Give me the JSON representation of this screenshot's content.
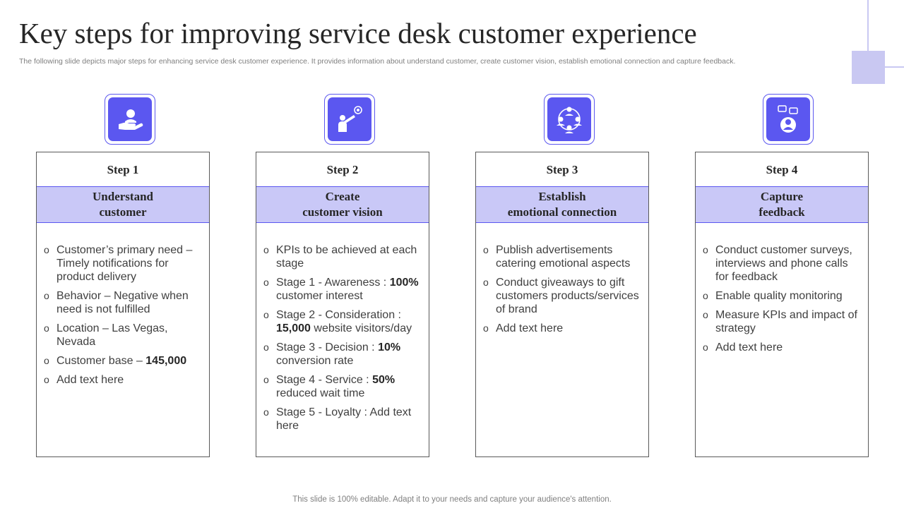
{
  "title": "Key steps for improving service desk customer experience",
  "subtitle": "The following slide depicts major steps for enhancing service desk customer experience. It provides information about understand customer, create customer vision, establish emotional connection and capture feedback.",
  "accent_color": "#5b57f0",
  "band_color": "#c9c8f7",
  "steps": [
    {
      "icon": "hand-person-icon",
      "label": "Step 1",
      "heading": "Understand\ncustomer",
      "items": [
        {
          "pre": "Customer’s primary need – Timely notifications for product delivery",
          "bold": "",
          "post": ""
        },
        {
          "pre": "Behavior – Negative when need is not fulfilled",
          "bold": "",
          "post": ""
        },
        {
          "pre": "Location – Las Vegas, Nevada",
          "bold": "",
          "post": ""
        },
        {
          "pre": "Customer base – ",
          "bold": "145,000",
          "post": ""
        },
        {
          "pre": "Add text here",
          "bold": "",
          "post": ""
        }
      ]
    },
    {
      "icon": "telescope-target-icon",
      "label": "Step 2",
      "heading": "Create\ncustomer vision",
      "items": [
        {
          "pre": "KPIs to be achieved at each stage",
          "bold": "",
          "post": ""
        },
        {
          "pre": "Stage 1 - Awareness : ",
          "bold": "100%",
          "post": " customer interest"
        },
        {
          "pre": "Stage 2 - Consideration : ",
          "bold": "15,000",
          "post": " website visitors/day"
        },
        {
          "pre": "Stage 3 - Decision : ",
          "bold": "10%",
          "post": " conversion rate"
        },
        {
          "pre": "Stage 4 - Service : ",
          "bold": "50%",
          "post": " reduced wait time"
        },
        {
          "pre": "Stage 5 - Loyalty : Add text here",
          "bold": "",
          "post": ""
        }
      ]
    },
    {
      "icon": "people-network-icon",
      "label": "Step 3",
      "heading": "Establish\nemotional connection",
      "items": [
        {
          "pre": "Publish advertisements catering emotional aspects",
          "bold": "",
          "post": ""
        },
        {
          "pre": "Conduct giveaways to gift customers products/services of brand",
          "bold": "",
          "post": ""
        },
        {
          "pre": "Add text here",
          "bold": "",
          "post": ""
        }
      ]
    },
    {
      "icon": "feedback-person-icon",
      "label": "Step 4",
      "heading": "Capture\nfeedback",
      "items": [
        {
          "pre": "Conduct customer surveys, interviews and phone calls for feedback",
          "bold": "",
          "post": ""
        },
        {
          "pre": "Enable quality monitoring",
          "bold": "",
          "post": ""
        },
        {
          "pre": "Measure KPIs and impact of strategy",
          "bold": "",
          "post": ""
        },
        {
          "pre": "Add text here",
          "bold": "",
          "post": ""
        }
      ]
    }
  ],
  "footer": "This slide is 100% editable. Adapt it to your needs and capture your audience's attention."
}
